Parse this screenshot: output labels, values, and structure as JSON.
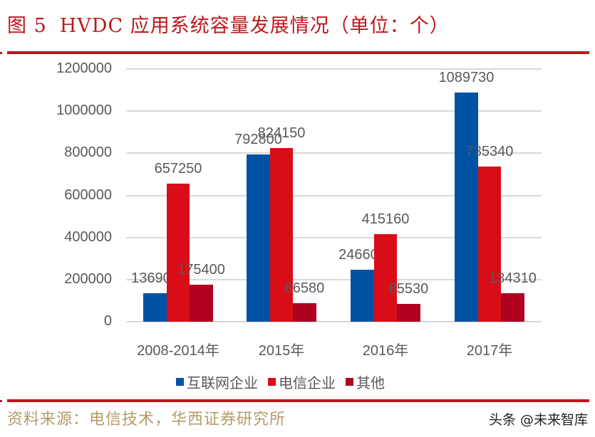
{
  "header": {
    "figure_number": "图 5",
    "title": "HVDC 应用系统容量发展情况（单位：个）"
  },
  "footer": {
    "source": "资料来源：电信技术，华西证券研究所",
    "watermark": "头条 @未来智库"
  },
  "colors": {
    "accent": "#c8101a",
    "series_internet": "#0052a5",
    "series_telecom": "#d90d18",
    "series_other": "#b00020",
    "grid": "#d9d9d9",
    "text": "#595959"
  },
  "chart_data": {
    "type": "bar",
    "title": "HVDC 应用系统容量发展情况（单位：个）",
    "xlabel": "",
    "ylabel": "",
    "categories": [
      "2008-2014年",
      "2015年",
      "2016年",
      "2017年"
    ],
    "series": [
      {
        "name": "互联网企业",
        "values": [
          136900,
          792800,
          246600,
          1089730
        ]
      },
      {
        "name": "电信企业",
        "values": [
          657250,
          824150,
          415160,
          735340
        ]
      },
      {
        "name": "其他",
        "values": [
          175400,
          86580,
          85530,
          134310
        ]
      }
    ],
    "ylim": [
      0,
      1200000
    ],
    "yticks": [
      "0",
      "200000",
      "400000",
      "600000",
      "800000",
      "1000000",
      "1200000"
    ],
    "grid": true,
    "legend_position": "bottom",
    "data_labels": true
  }
}
